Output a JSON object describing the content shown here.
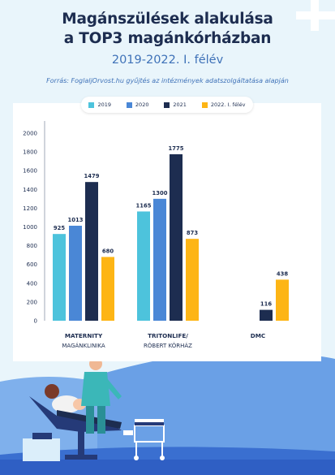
{
  "title_line1": "Magánszülések alakulása",
  "title_line2": "a TOP3 magánkórházban",
  "subtitle": "2019-2022. I. félév",
  "source": "Forrás: FoglaljOrvost.hu gyűjtés az intézmények adatszolgáltatása alapján",
  "colors": {
    "2019": "#4dc3dc",
    "2020": "#4a87d6",
    "2021": "#1d2d50",
    "2022": "#fdb515",
    "title": "#1d2d50",
    "accent": "#3f72b8"
  },
  "chart_data": {
    "type": "bar",
    "categories": [
      {
        "line1": "MATERNITY",
        "line2": "MAGÁNKLINIKA"
      },
      {
        "line1": "TRITONLIFE/",
        "line2": "RÓBERT KÓRHÁZ"
      },
      {
        "line1": "DMC",
        "line2": ""
      }
    ],
    "series": [
      {
        "name": "2019",
        "values": [
          925,
          1165,
          null
        ]
      },
      {
        "name": "2020",
        "values": [
          1013,
          1300,
          null
        ]
      },
      {
        "name": "2021",
        "values": [
          1479,
          1775,
          116
        ]
      },
      {
        "name": "2022. I. félév",
        "values": [
          680,
          873,
          438
        ]
      }
    ],
    "yticks": [
      0,
      200,
      400,
      600,
      800,
      1000,
      1200,
      1400,
      1600,
      1800,
      2000
    ],
    "ylim": [
      0,
      2000
    ],
    "legend_position": "top",
    "grid": false
  }
}
